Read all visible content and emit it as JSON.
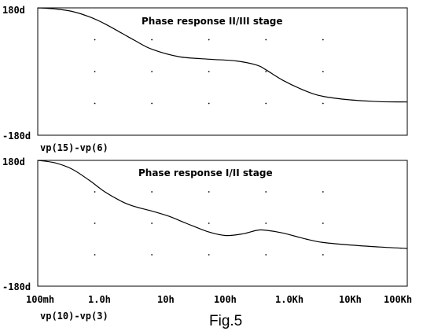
{
  "chart_data": [
    {
      "type": "line",
      "title": "Phase response II/III stage",
      "trace_label": "vp(15)-vp(6)",
      "ytick_labels": [
        "180d",
        "-180d"
      ],
      "xscale": "log",
      "xlim": [
        0.1,
        300000
      ],
      "ylim": [
        -180,
        180
      ],
      "grid": "dotted",
      "series": [
        {
          "x": [
            0.1,
            0.2,
            0.4,
            0.8,
            1.5,
            3,
            5,
            10,
            30,
            100,
            300,
            700,
            1000,
            2000,
            5000,
            10000,
            30000,
            100000,
            300000
          ],
          "y": [
            180,
            177,
            170,
            155,
            135,
            108,
            88,
            63,
            42,
            35,
            30,
            18,
            5,
            -25,
            -55,
            -70,
            -80,
            -85,
            -86
          ]
        }
      ]
    },
    {
      "type": "line",
      "title": "Phase response I/II stage",
      "trace_label": "vp(10)-vp(3)",
      "ytick_labels": [
        "180d",
        "-180d"
      ],
      "xtick_labels": [
        "100mh",
        "1.0h",
        "10h",
        "100h",
        "1.0Kh",
        "10Kh",
        "100Kh"
      ],
      "xscale": "log",
      "xlim": [
        0.1,
        300000
      ],
      "ylim": [
        -180,
        180
      ],
      "grid": "dotted",
      "series": [
        {
          "x": [
            0.1,
            0.2,
            0.4,
            0.8,
            1.5,
            3,
            5,
            10,
            20,
            40,
            100,
            200,
            400,
            700,
            1000,
            2000,
            5000,
            10000,
            30000,
            100000,
            300000
          ],
          "y": [
            180,
            173,
            155,
            123,
            90,
            62,
            48,
            35,
            20,
            0,
            -25,
            -35,
            -30,
            -20,
            -20,
            -28,
            -45,
            -55,
            -62,
            -68,
            -72
          ]
        }
      ]
    }
  ],
  "caption": "Fig.5"
}
